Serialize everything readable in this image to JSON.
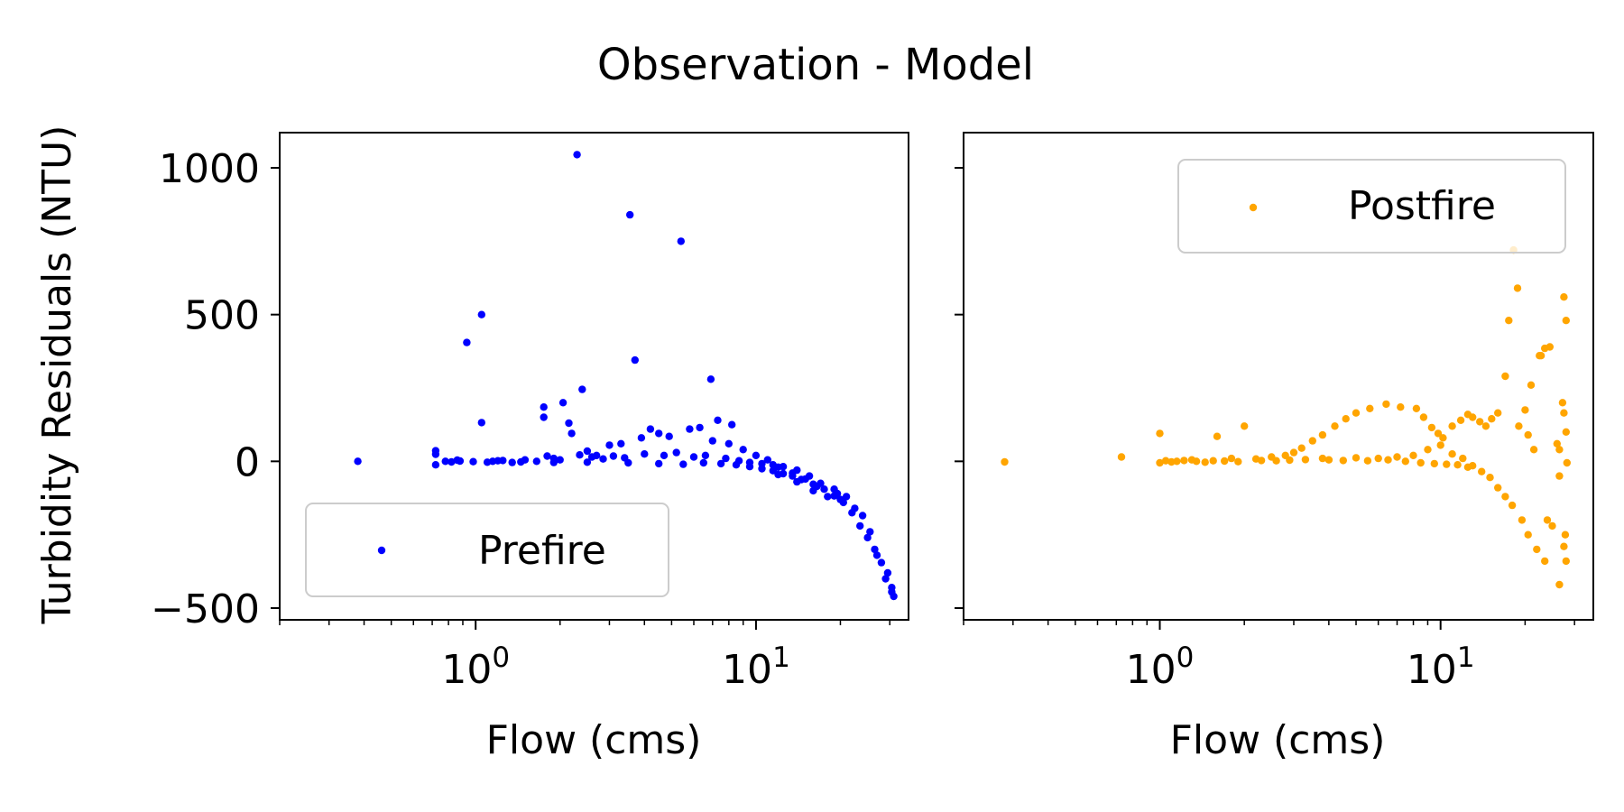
{
  "figure": {
    "title": "Observation - Model",
    "ylabel": "Turbidity Residuals (NTU)"
  },
  "chart_data": [
    {
      "type": "scatter",
      "x_scale": "log",
      "xlim": [
        0.2,
        35
      ],
      "ylim": [
        -540,
        1120
      ],
      "xlabel": "Flow (cms)",
      "ylabel": "Turbidity Residuals (NTU)",
      "x_ticks": [
        {
          "value": 1,
          "base": "10",
          "exp": "0"
        },
        {
          "value": 10,
          "base": "10",
          "exp": "1"
        }
      ],
      "y_ticks": [
        {
          "value": 1000,
          "label": "1000"
        },
        {
          "value": 500,
          "label": "500"
        },
        {
          "value": 0,
          "label": "0"
        },
        {
          "value": -500,
          "label": "−500"
        }
      ],
      "legend": {
        "placement": "lower-left"
      },
      "grid": false,
      "series": [
        {
          "name": "Prefire",
          "color": "#0000ff",
          "points": [
            [
              0.38,
              0
            ],
            [
              0.72,
              36
            ],
            [
              0.72,
              24
            ],
            [
              0.72,
              -12
            ],
            [
              0.78,
              0
            ],
            [
              0.82,
              -2
            ],
            [
              0.88,
              1
            ],
            [
              0.93,
              405
            ],
            [
              1.05,
              500
            ],
            [
              1.05,
              132
            ],
            [
              1.1,
              -3
            ],
            [
              1.2,
              2
            ],
            [
              1.35,
              -4
            ],
            [
              1.5,
              5
            ],
            [
              1.75,
              150
            ],
            [
              1.75,
              185
            ],
            [
              1.8,
              18
            ],
            [
              1.9,
              10
            ],
            [
              2.05,
              200
            ],
            [
              2.15,
              130
            ],
            [
              2.3,
              1045
            ],
            [
              2.4,
              245
            ],
            [
              2.2,
              95
            ],
            [
              2.5,
              35
            ],
            [
              2.7,
              20
            ],
            [
              3.0,
              55
            ],
            [
              3.3,
              60
            ],
            [
              3.55,
              840
            ],
            [
              3.7,
              345
            ],
            [
              3.9,
              80
            ],
            [
              4.2,
              110
            ],
            [
              4.5,
              95
            ],
            [
              4.9,
              85
            ],
            [
              5.4,
              750
            ],
            [
              5.8,
              110
            ],
            [
              6.3,
              115
            ],
            [
              6.9,
              280
            ],
            [
              7.3,
              140
            ],
            [
              8.2,
              125
            ],
            [
              7.0,
              70
            ],
            [
              8.0,
              60
            ],
            [
              9.0,
              40
            ],
            [
              10.0,
              20
            ],
            [
              11.0,
              5
            ],
            [
              12.0,
              -20
            ],
            [
              13.5,
              -40
            ],
            [
              15.0,
              -60
            ],
            [
              16.5,
              -85
            ],
            [
              18.0,
              -120
            ],
            [
              19.5,
              -110
            ],
            [
              20.5,
              -140
            ],
            [
              22.0,
              -175
            ],
            [
              23.5,
              -220
            ],
            [
              25.0,
              -260
            ],
            [
              26.5,
              -300
            ],
            [
              28.0,
              -345
            ],
            [
              29.5,
              -380
            ],
            [
              30.5,
              -430
            ],
            [
              31.0,
              -460
            ],
            [
              30.5,
              -445
            ],
            [
              29.0,
              -400
            ],
            [
              27.0,
              -320
            ],
            [
              25.5,
              -240
            ],
            [
              24.0,
              -185
            ],
            [
              21.0,
              -120
            ],
            [
              19.0,
              -95
            ],
            [
              17.0,
              -75
            ],
            [
              15.5,
              -50
            ],
            [
              14.0,
              -30
            ],
            [
              12.5,
              -18
            ],
            [
              11.5,
              -12
            ],
            [
              10.5,
              -8
            ],
            [
              9.5,
              -4
            ],
            [
              8.7,
              2
            ],
            [
              7.8,
              10
            ],
            [
              6.6,
              20
            ],
            [
              6.0,
              15
            ],
            [
              5.2,
              30
            ],
            [
              4.7,
              20
            ],
            [
              4.0,
              25
            ],
            [
              3.4,
              12
            ],
            [
              3.1,
              18
            ],
            [
              2.85,
              8
            ],
            [
              2.6,
              15
            ],
            [
              2.35,
              22
            ],
            [
              2.0,
              5
            ],
            [
              1.65,
              0
            ],
            [
              1.45,
              -2
            ],
            [
              1.25,
              3
            ],
            [
              1.15,
              0
            ],
            [
              0.98,
              -1
            ],
            [
              0.86,
              4
            ],
            [
              6.5,
              -5
            ],
            [
              7.5,
              -8
            ],
            [
              8.5,
              -12
            ],
            [
              9.5,
              -18
            ],
            [
              10.5,
              -25
            ],
            [
              11.5,
              -32
            ],
            [
              12.5,
              -42
            ],
            [
              13.5,
              -50
            ],
            [
              14.5,
              -62
            ],
            [
              16.0,
              -78
            ],
            [
              17.5,
              -95
            ],
            [
              19.0,
              -118
            ],
            [
              20.0,
              -130
            ],
            [
              22.5,
              -160
            ],
            [
              16.0,
              -100
            ],
            [
              14.0,
              -70
            ],
            [
              12.0,
              -45
            ],
            [
              3.5,
              -5
            ],
            [
              4.5,
              -8
            ],
            [
              5.5,
              -10
            ],
            [
              2.5,
              -3
            ],
            [
              1.9,
              -4
            ]
          ]
        },
        {
          "name": "Postfire",
          "color": "#ffa500",
          "points": [
            [
              0.28,
              -2
            ],
            [
              0.73,
              15
            ],
            [
              1.0,
              95
            ],
            [
              1.0,
              -5
            ],
            [
              1.05,
              2
            ],
            [
              1.15,
              0
            ],
            [
              1.3,
              5
            ],
            [
              1.45,
              -3
            ],
            [
              1.6,
              85
            ],
            [
              1.8,
              10
            ],
            [
              2.0,
              120
            ],
            [
              2.2,
              8
            ],
            [
              2.5,
              15
            ],
            [
              2.8,
              20
            ],
            [
              3.0,
              30
            ],
            [
              3.2,
              45
            ],
            [
              3.5,
              70
            ],
            [
              3.8,
              90
            ],
            [
              4.2,
              120
            ],
            [
              4.6,
              145
            ],
            [
              5.0,
              165
            ],
            [
              5.6,
              180
            ],
            [
              6.4,
              195
            ],
            [
              7.2,
              185
            ],
            [
              8.2,
              180
            ],
            [
              8.7,
              150
            ],
            [
              9.3,
              115
            ],
            [
              9.8,
              95
            ],
            [
              10.2,
              80
            ],
            [
              11.0,
              120
            ],
            [
              11.8,
              140
            ],
            [
              12.5,
              160
            ],
            [
              13.0,
              150
            ],
            [
              13.8,
              135
            ],
            [
              14.5,
              120
            ],
            [
              15.2,
              145
            ],
            [
              16.0,
              165
            ],
            [
              17.0,
              290
            ],
            [
              17.5,
              480
            ],
            [
              18.2,
              720
            ],
            [
              18.8,
              590
            ],
            [
              20.0,
              175
            ],
            [
              21.0,
              260
            ],
            [
              22.5,
              360
            ],
            [
              23.5,
              385
            ],
            [
              24.5,
              390
            ],
            [
              26.0,
              60
            ],
            [
              26.5,
              40
            ],
            [
              27.5,
              560
            ],
            [
              28.0,
              480
            ],
            [
              27.5,
              165
            ],
            [
              28.0,
              100
            ],
            [
              28.2,
              -5
            ],
            [
              27.8,
              -250
            ],
            [
              27.5,
              -290
            ],
            [
              28.0,
              -340
            ],
            [
              26.5,
              -420
            ],
            [
              25.0,
              -220
            ],
            [
              23.5,
              -340
            ],
            [
              22.0,
              -300
            ],
            [
              20.5,
              -250
            ],
            [
              19.5,
              -200
            ],
            [
              18.0,
              -150
            ],
            [
              17.0,
              -120
            ],
            [
              16.0,
              -90
            ],
            [
              15.0,
              -55
            ],
            [
              14.0,
              -35
            ],
            [
              12.5,
              -20
            ],
            [
              11.5,
              -12
            ],
            [
              10.5,
              -10
            ],
            [
              9.5,
              -8
            ],
            [
              8.5,
              -5
            ],
            [
              7.5,
              0
            ],
            [
              6.5,
              5
            ],
            [
              5.5,
              2
            ],
            [
              4.5,
              3
            ],
            [
              3.8,
              10
            ],
            [
              3.3,
              6
            ],
            [
              2.9,
              4
            ],
            [
              2.6,
              2
            ],
            [
              2.3,
              3
            ],
            [
              1.9,
              -1
            ],
            [
              1.7,
              1
            ],
            [
              1.55,
              2
            ],
            [
              1.35,
              0
            ],
            [
              1.22,
              3
            ],
            [
              1.1,
              -2
            ],
            [
              9.0,
              40
            ],
            [
              10.0,
              55
            ],
            [
              11.0,
              25
            ],
            [
              12.0,
              10
            ],
            [
              13.0,
              -15
            ],
            [
              7.0,
              15
            ],
            [
              8.0,
              20
            ],
            [
              5.0,
              12
            ],
            [
              6.0,
              10
            ],
            [
              4.0,
              5
            ],
            [
              24.0,
              -200
            ],
            [
              22.8,
              360
            ],
            [
              21.5,
              40
            ],
            [
              19.0,
              120
            ],
            [
              20.5,
              90
            ],
            [
              26.5,
              -50
            ],
            [
              27.2,
              200
            ]
          ]
        }
      ]
    }
  ]
}
